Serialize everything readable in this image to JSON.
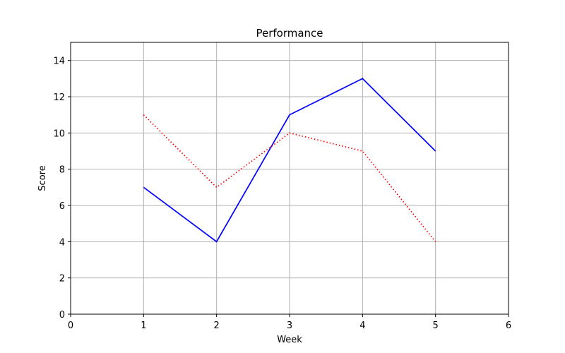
{
  "chart_data": {
    "type": "line",
    "title": "Performance",
    "xlabel": "Week",
    "ylabel": "Score",
    "xlim": [
      0,
      6
    ],
    "ylim": [
      0,
      15
    ],
    "xticks": [
      0,
      1,
      2,
      3,
      4,
      5,
      6
    ],
    "yticks": [
      0,
      2,
      4,
      6,
      8,
      10,
      12,
      14
    ],
    "grid": true,
    "x": [
      1,
      2,
      3,
      4,
      5
    ],
    "series": [
      {
        "values": [
          7,
          4,
          11,
          13,
          9
        ],
        "color": "#0000ff",
        "style": "solid"
      },
      {
        "values": [
          11,
          7,
          10,
          9,
          4
        ],
        "color": "#ff0000",
        "style": "dotted"
      }
    ]
  }
}
